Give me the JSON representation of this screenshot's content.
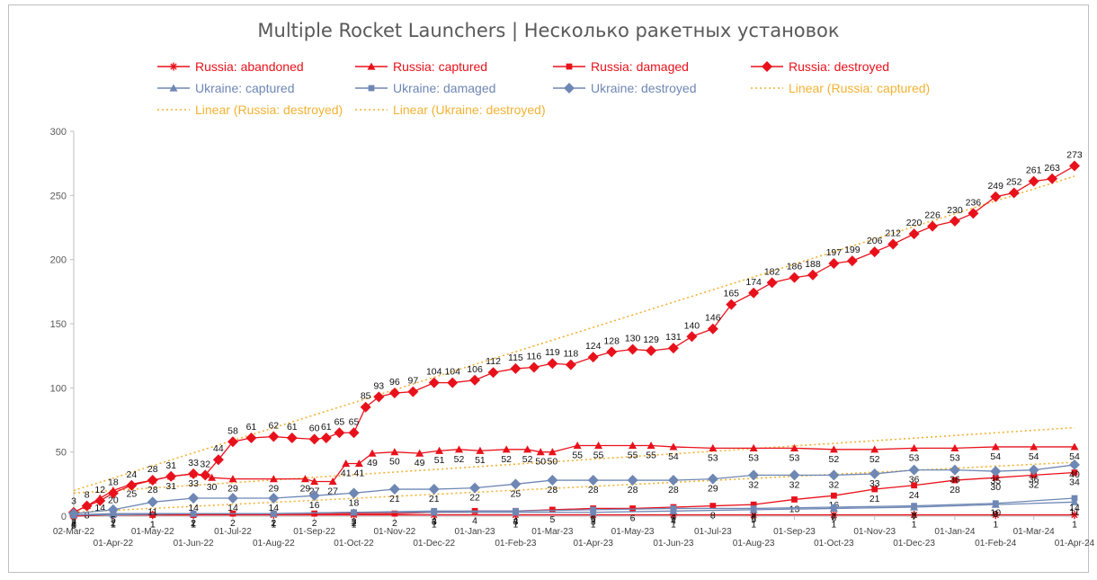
{
  "chart_data": {
    "type": "line",
    "title": "Multiple Rocket Launchers | Несколько ракетных установок",
    "xlabel": "",
    "ylabel": "",
    "ylim": [
      0,
      300
    ],
    "yticks": [
      0,
      50,
      100,
      150,
      200,
      250,
      300
    ],
    "grid": false,
    "legend_position": "top",
    "x_range": [
      "2022-03-02",
      "2024-04-01"
    ],
    "xticks_upper": [
      "02-Mar-22",
      "01-May-22",
      "01-Jul-22",
      "01-Sep-22",
      "01-Nov-22",
      "01-Jan-23",
      "01-Mar-23",
      "01-May-23",
      "01-Jul-23",
      "01-Sep-23",
      "01-Nov-23",
      "01-Jan-24",
      "01-Mar-24"
    ],
    "xticks_lower": [
      "01-Apr-22",
      "01-Jun-22",
      "01-Aug-22",
      "01-Oct-22",
      "01-Dec-22",
      "01-Feb-23",
      "01-Apr-23",
      "01-Jun-23",
      "01-Aug-23",
      "01-Oct-23",
      "01-Dec-23",
      "01-Feb-24",
      "01-Apr-24"
    ],
    "series": [
      {
        "name": "Russia: abandoned",
        "color": "#e8111b",
        "marker": "asterisk",
        "x": [
          "2022-03-02",
          "2022-04-01",
          "2022-05-01",
          "2022-06-01",
          "2022-08-01",
          "2022-10-01",
          "2022-12-01",
          "2023-02-01",
          "2023-04-01",
          "2023-06-01",
          "2023-08-01",
          "2023-10-01",
          "2023-12-01",
          "2024-02-01",
          "2024-04-01"
        ],
        "values": [
          0,
          1,
          1,
          1,
          1,
          1,
          1,
          1,
          1,
          1,
          1,
          1,
          1,
          1,
          1
        ]
      },
      {
        "name": "Russia: captured",
        "color": "#e8111b",
        "marker": "triangle",
        "x": [
          "2022-03-02",
          "2022-03-12",
          "2022-03-22",
          "2022-04-01",
          "2022-04-15",
          "2022-05-01",
          "2022-05-15",
          "2022-06-01",
          "2022-06-15",
          "2022-07-01",
          "2022-08-01",
          "2022-08-25",
          "2022-09-01",
          "2022-09-15",
          "2022-09-25",
          "2022-10-05",
          "2022-10-15",
          "2022-11-01",
          "2022-11-20",
          "2022-12-05",
          "2022-12-20",
          "2023-01-05",
          "2023-01-25",
          "2023-02-10",
          "2023-02-20",
          "2023-03-01",
          "2023-03-20",
          "2023-04-05",
          "2023-05-01",
          "2023-05-15",
          "2023-06-01",
          "2023-07-01",
          "2023-08-01",
          "2023-09-01",
          "2023-10-01",
          "2023-11-01",
          "2023-12-01",
          "2024-01-01",
          "2024-02-01",
          "2024-03-01",
          "2024-04-01"
        ],
        "values": [
          3,
          8,
          14,
          20,
          25,
          28,
          31,
          33,
          30,
          29,
          29,
          29,
          27,
          27,
          41,
          41,
          49,
          50,
          49,
          51,
          52,
          51,
          52,
          52,
          50,
          50,
          55,
          55,
          55,
          55,
          54,
          53,
          53,
          53,
          52,
          52,
          53,
          53,
          54,
          54,
          54
        ]
      },
      {
        "name": "Russia: damaged",
        "color": "#e8111b",
        "marker": "square",
        "x": [
          "2022-03-02",
          "2022-04-01",
          "2022-05-01",
          "2022-06-01",
          "2022-07-01",
          "2022-08-01",
          "2022-09-01",
          "2022-10-01",
          "2022-11-01",
          "2022-12-01",
          "2023-01-01",
          "2023-02-01",
          "2023-03-01",
          "2023-04-01",
          "2023-05-01",
          "2023-06-01",
          "2023-07-01",
          "2023-08-01",
          "2023-09-01",
          "2023-10-01",
          "2023-11-01",
          "2023-12-01",
          "2024-01-01",
          "2024-02-01",
          "2024-03-01",
          "2024-04-01"
        ],
        "values": [
          1,
          1,
          1,
          1,
          2,
          2,
          2,
          2,
          2,
          3,
          4,
          4,
          5,
          6,
          6,
          7,
          8,
          9,
          13,
          16,
          21,
          24,
          28,
          30,
          32,
          34
        ]
      },
      {
        "name": "Russia: destroyed",
        "color": "#e8111b",
        "marker": "diamond",
        "x": [
          "2022-03-02",
          "2022-03-12",
          "2022-03-22",
          "2022-04-01",
          "2022-04-15",
          "2022-05-01",
          "2022-05-15",
          "2022-06-01",
          "2022-06-10",
          "2022-06-20",
          "2022-07-01",
          "2022-07-15",
          "2022-08-01",
          "2022-08-15",
          "2022-09-01",
          "2022-09-10",
          "2022-09-20",
          "2022-10-01",
          "2022-10-10",
          "2022-10-20",
          "2022-11-01",
          "2022-11-15",
          "2022-12-01",
          "2022-12-15",
          "2023-01-01",
          "2023-01-15",
          "2023-02-01",
          "2023-02-15",
          "2023-03-01",
          "2023-03-15",
          "2023-04-01",
          "2023-04-15",
          "2023-05-01",
          "2023-05-15",
          "2023-06-01",
          "2023-06-15",
          "2023-07-01",
          "2023-07-15",
          "2023-08-01",
          "2023-08-15",
          "2023-09-01",
          "2023-09-15",
          "2023-10-01",
          "2023-10-15",
          "2023-11-01",
          "2023-11-15",
          "2023-12-01",
          "2023-12-15",
          "2024-01-01",
          "2024-01-15",
          "2024-02-01",
          "2024-02-15",
          "2024-03-01",
          "2024-03-15",
          "2024-04-01"
        ],
        "values": [
          3,
          8,
          12,
          18,
          24,
          28,
          31,
          33,
          32,
          44,
          58,
          61,
          62,
          61,
          60,
          61,
          65,
          65,
          85,
          93,
          96,
          97,
          104,
          104,
          106,
          112,
          115,
          116,
          119,
          118,
          124,
          128,
          130,
          129,
          131,
          140,
          146,
          165,
          174,
          182,
          186,
          188,
          197,
          199,
          206,
          212,
          220,
          226,
          230,
          236,
          249,
          252,
          261,
          263,
          273
        ]
      },
      {
        "name": "Ukraine: captured",
        "color": "#6e87b4",
        "marker": "triangle",
        "x": [
          "2022-03-02",
          "2022-04-01",
          "2022-06-01",
          "2022-08-01",
          "2022-10-01",
          "2022-12-01",
          "2023-02-01",
          "2023-04-01",
          "2023-06-01",
          "2023-08-01",
          "2023-10-01",
          "2023-12-01",
          "2024-02-01",
          "2024-04-01"
        ],
        "values": [
          1,
          2,
          2,
          2,
          3,
          3,
          3,
          3,
          4,
          5,
          6,
          7,
          9,
          11
        ]
      },
      {
        "name": "Ukraine: damaged",
        "color": "#6e87b4",
        "marker": "square",
        "x": [
          "2022-03-02",
          "2022-04-01",
          "2022-06-01",
          "2022-08-01",
          "2022-10-01",
          "2022-12-01",
          "2023-02-01",
          "2023-04-01",
          "2023-06-01",
          "2023-08-01",
          "2023-10-01",
          "2023-12-01",
          "2024-02-01",
          "2024-04-01"
        ],
        "values": [
          1,
          1,
          2,
          2,
          3,
          4,
          4,
          5,
          6,
          6,
          7,
          8,
          10,
          14
        ]
      },
      {
        "name": "Ukraine: destroyed",
        "color": "#6e87b4",
        "marker": "diamond",
        "x": [
          "2022-03-02",
          "2022-04-01",
          "2022-05-01",
          "2022-06-01",
          "2022-07-01",
          "2022-08-01",
          "2022-09-01",
          "2022-10-01",
          "2022-11-01",
          "2022-12-01",
          "2023-01-01",
          "2023-02-01",
          "2023-03-01",
          "2023-04-01",
          "2023-05-01",
          "2023-06-01",
          "2023-07-01",
          "2023-08-01",
          "2023-09-01",
          "2023-10-01",
          "2023-11-01",
          "2023-12-01",
          "2024-01-01",
          "2024-02-01",
          "2024-03-01",
          "2024-04-01"
        ],
        "values": [
          2,
          5,
          11,
          14,
          14,
          14,
          16,
          18,
          21,
          21,
          22,
          25,
          28,
          28,
          28,
          28,
          29,
          32,
          32,
          32,
          33,
          36,
          36,
          35,
          36,
          40
        ]
      }
    ],
    "trendlines": [
      {
        "name": "Linear (Russia: captured)",
        "color": "#f2b233",
        "x": [
          "2022-03-02",
          "2024-04-01"
        ],
        "values": [
          18,
          69
        ]
      },
      {
        "name": "Linear (Russia: destroyed)",
        "color": "#f2b233",
        "x": [
          "2022-03-02",
          "2024-04-01"
        ],
        "values": [
          20,
          265
        ]
      },
      {
        "name": "Linear (Ukraine: destroyed)",
        "color": "#f2b233",
        "x": [
          "2022-03-02",
          "2024-04-01"
        ],
        "values": [
          3,
          42
        ]
      }
    ]
  }
}
